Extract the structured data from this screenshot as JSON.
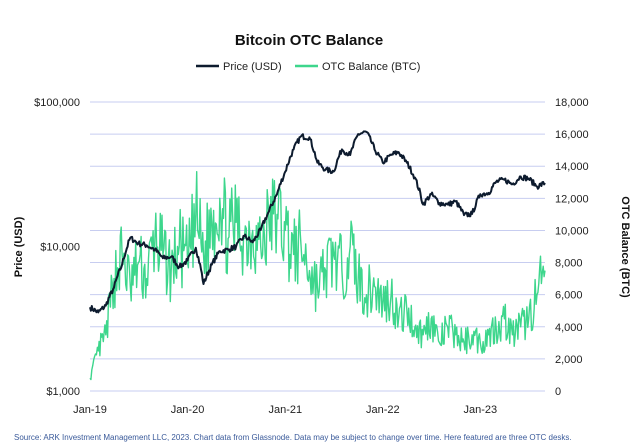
{
  "chart_data": {
    "type": "line",
    "title": "Bitcoin OTC Balance",
    "y_left_label": "Price (USD)",
    "y_right_label": "OTC Balance (BTC)",
    "y_left_scale": "log",
    "y_left_range": [
      1000,
      100000
    ],
    "y_left_ticks": [
      "$1,000",
      "$10,000",
      "$100,000"
    ],
    "y_right_range": [
      0,
      18000
    ],
    "y_right_ticks": [
      "0",
      "2,000",
      "4,000",
      "6,000",
      "8,000",
      "10,000",
      "12,000",
      "14,000",
      "16,000",
      "18,000"
    ],
    "x_range": [
      "2019-01-01",
      "2023-08-31"
    ],
    "x_ticks": [
      "Jan-19",
      "Jan-20",
      "Jan-21",
      "Jan-22",
      "Jan-23"
    ],
    "grid": "horizontal",
    "legend_position": "top-center",
    "source_note": "Source: ARK Investment Management LLC, 2023. Chart data from Glassnode. Data may be subject to change over time. Here featured are three OTC desks.",
    "series": [
      {
        "name": "Price (USD)",
        "axis": "left",
        "color": "#0d1b2e",
        "points": [
          [
            "2019-01-01",
            3800
          ],
          [
            "2019-02-01",
            3500
          ],
          [
            "2019-03-01",
            3900
          ],
          [
            "2019-04-01",
            5200
          ],
          [
            "2019-05-01",
            7500
          ],
          [
            "2019-06-01",
            11500
          ],
          [
            "2019-07-01",
            10500
          ],
          [
            "2019-08-01",
            10200
          ],
          [
            "2019-09-01",
            9500
          ],
          [
            "2019-10-01",
            8300
          ],
          [
            "2019-11-01",
            8500
          ],
          [
            "2019-12-01",
            7200
          ],
          [
            "2020-01-01",
            8000
          ],
          [
            "2020-02-01",
            9800
          ],
          [
            "2020-03-01",
            5500
          ],
          [
            "2020-04-01",
            7500
          ],
          [
            "2020-05-01",
            9300
          ],
          [
            "2020-06-01",
            9500
          ],
          [
            "2020-07-01",
            10000
          ],
          [
            "2020-08-01",
            11800
          ],
          [
            "2020-09-01",
            10700
          ],
          [
            "2020-10-01",
            13000
          ],
          [
            "2020-11-01",
            17500
          ],
          [
            "2020-12-01",
            23000
          ],
          [
            "2021-01-01",
            33000
          ],
          [
            "2021-02-01",
            47000
          ],
          [
            "2021-03-01",
            58000
          ],
          [
            "2021-04-01",
            57000
          ],
          [
            "2021-05-01",
            38000
          ],
          [
            "2021-06-01",
            34000
          ],
          [
            "2021-07-01",
            33000
          ],
          [
            "2021-08-01",
            47000
          ],
          [
            "2021-09-01",
            43000
          ],
          [
            "2021-10-01",
            60000
          ],
          [
            "2021-11-01",
            62000
          ],
          [
            "2021-12-01",
            47000
          ],
          [
            "2022-01-01",
            38000
          ],
          [
            "2022-02-01",
            43000
          ],
          [
            "2022-03-01",
            45000
          ],
          [
            "2022-04-01",
            38000
          ],
          [
            "2022-05-01",
            30000
          ],
          [
            "2022-06-01",
            19500
          ],
          [
            "2022-07-01",
            23000
          ],
          [
            "2022-08-01",
            20000
          ],
          [
            "2022-09-01",
            19500
          ],
          [
            "2022-10-01",
            20500
          ],
          [
            "2022-11-01",
            16500
          ],
          [
            "2022-12-01",
            16800
          ],
          [
            "2023-01-01",
            23000
          ],
          [
            "2023-02-01",
            23500
          ],
          [
            "2023-03-01",
            28000
          ],
          [
            "2023-04-01",
            29000
          ],
          [
            "2023-05-01",
            27000
          ],
          [
            "2023-06-01",
            30500
          ],
          [
            "2023-07-01",
            29500
          ],
          [
            "2023-08-01",
            26000
          ],
          [
            "2023-08-31",
            27500
          ]
        ]
      },
      {
        "name": "OTC Balance (BTC)",
        "axis": "right",
        "color": "#3dd68c",
        "points": [
          [
            "2019-01-01",
            800
          ],
          [
            "2019-02-01",
            2500
          ],
          [
            "2019-03-01",
            3500
          ],
          [
            "2019-04-01",
            7000
          ],
          [
            "2019-05-01",
            8500
          ],
          [
            "2019-06-01",
            6500
          ],
          [
            "2019-07-01",
            8000
          ],
          [
            "2019-08-01",
            7000
          ],
          [
            "2019-09-01",
            9500
          ],
          [
            "2019-10-01",
            8500
          ],
          [
            "2019-11-01",
            7500
          ],
          [
            "2019-12-01",
            9000
          ],
          [
            "2020-01-01",
            8000
          ],
          [
            "2020-02-01",
            11000
          ],
          [
            "2020-03-01",
            8500
          ],
          [
            "2020-04-01",
            10500
          ],
          [
            "2020-05-01",
            12000
          ],
          [
            "2020-06-01",
            9500
          ],
          [
            "2020-07-01",
            10500
          ],
          [
            "2020-08-01",
            9500
          ],
          [
            "2020-09-01",
            10000
          ],
          [
            "2020-10-01",
            9000
          ],
          [
            "2020-11-01",
            10500
          ],
          [
            "2020-12-01",
            11000
          ],
          [
            "2021-01-01",
            10000
          ],
          [
            "2021-02-01",
            8500
          ],
          [
            "2021-03-01",
            9000
          ],
          [
            "2021-04-01",
            7500
          ],
          [
            "2021-05-01",
            6500
          ],
          [
            "2021-06-01",
            7500
          ],
          [
            "2021-07-01",
            8500
          ],
          [
            "2021-08-01",
            7500
          ],
          [
            "2021-09-01",
            9000
          ],
          [
            "2021-10-01",
            7000
          ],
          [
            "2021-11-01",
            6000
          ],
          [
            "2021-12-01",
            6500
          ],
          [
            "2022-01-01",
            5500
          ],
          [
            "2022-02-01",
            6000
          ],
          [
            "2022-03-01",
            4500
          ],
          [
            "2022-04-01",
            5000
          ],
          [
            "2022-05-01",
            4000
          ],
          [
            "2022-06-01",
            3500
          ],
          [
            "2022-07-01",
            4500
          ],
          [
            "2022-08-01",
            3000
          ],
          [
            "2022-09-01",
            4000
          ],
          [
            "2022-10-01",
            3500
          ],
          [
            "2022-11-01",
            3000
          ],
          [
            "2022-12-01",
            3500
          ],
          [
            "2023-01-01",
            3000
          ],
          [
            "2023-02-01",
            3500
          ],
          [
            "2023-03-01",
            4000
          ],
          [
            "2023-04-01",
            4500
          ],
          [
            "2023-05-01",
            3500
          ],
          [
            "2023-06-01",
            4000
          ],
          [
            "2023-07-01",
            4500
          ],
          [
            "2023-08-01",
            6000
          ],
          [
            "2023-08-31",
            7500
          ]
        ]
      }
    ]
  }
}
